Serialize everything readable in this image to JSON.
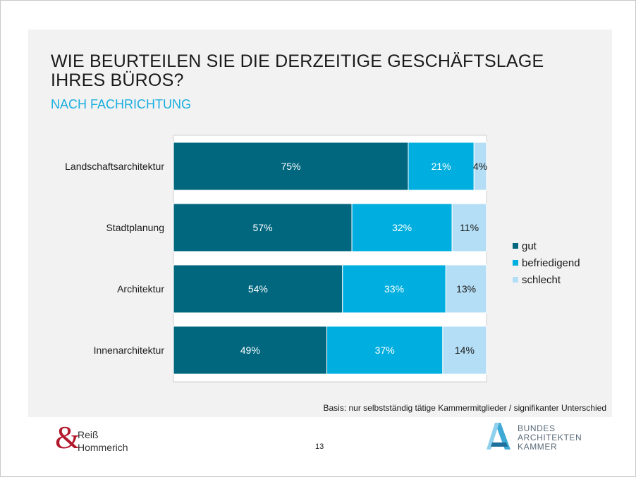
{
  "title": "WIE BEURTEILEN SIE DIE DERZEITIGE GESCHÄFTSLAGE IHRES BÜROS?",
  "subtitle": "NACH FACHRICHTUNG",
  "basis": "Basis: nur selbstständig tätige Kammermitglieder / signifikanter Unterschied",
  "page_number": "13",
  "logo_left": {
    "symbol": "&",
    "line1": "Reiß",
    "line2": "Hommerich"
  },
  "logo_right": {
    "line1": "BUNDES",
    "line2": "ARCHITEKTEN",
    "line3": "KAMMER"
  },
  "chart_data": {
    "type": "bar",
    "orientation": "horizontal",
    "stacked": true,
    "categories": [
      "Landschaftsarchitektur",
      "Stadtplanung",
      "Architektur",
      "Innenarchitektur"
    ],
    "series": [
      {
        "name": "gut",
        "values": [
          75,
          57,
          54,
          49
        ],
        "labels": [
          "75%",
          "57%",
          "54%",
          "49%"
        ],
        "color": "#00677f",
        "label_color": "#ffffff"
      },
      {
        "name": "befriedigend",
        "values": [
          21,
          32,
          33,
          37
        ],
        "labels": [
          "21%",
          "32%",
          "33%",
          "37%"
        ],
        "color": "#00afdf",
        "label_color": "#ffffff"
      },
      {
        "name": "schlecht",
        "values": [
          4,
          11,
          13,
          14
        ],
        "labels": [
          "4%",
          "11%",
          "13%",
          "14%"
        ],
        "color": "#b4def5",
        "label_color": "#1a1a1a"
      }
    ],
    "xlim": [
      0,
      100
    ],
    "legend_position": "right",
    "grid": false
  }
}
